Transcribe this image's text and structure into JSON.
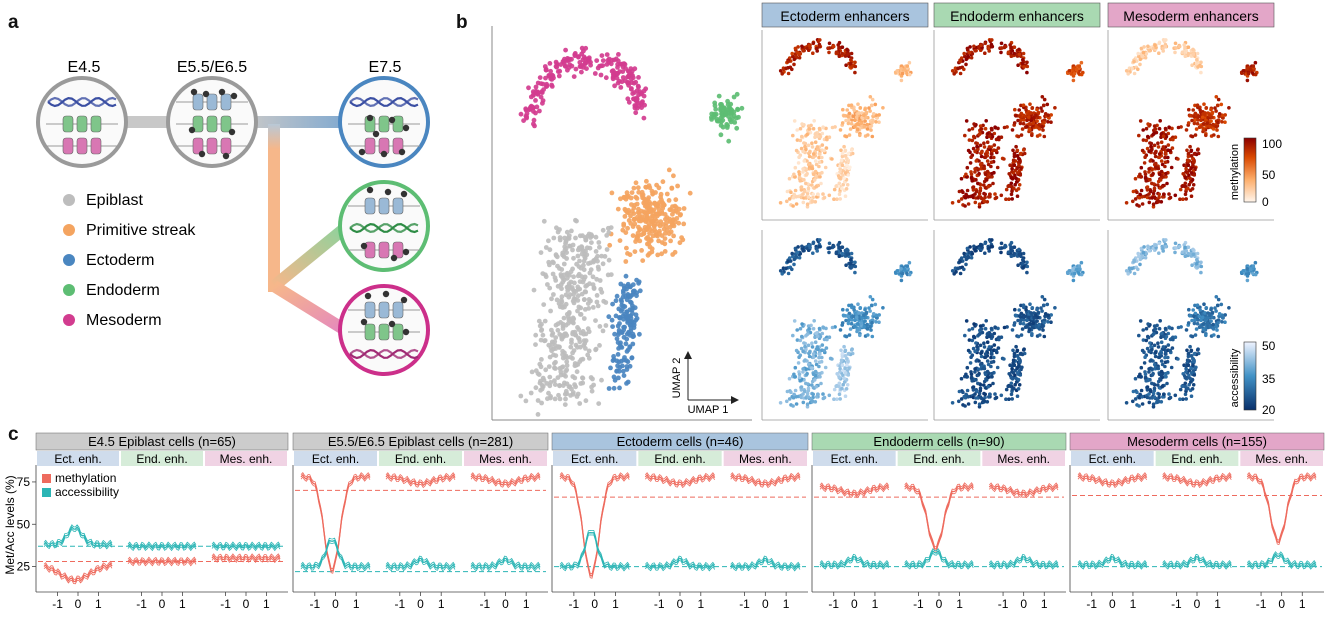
{
  "panel_a": {
    "letter": "a",
    "stages": [
      "E4.5",
      "E5.5/E6.5",
      "E7.5"
    ],
    "legend": [
      {
        "label": "Epiblast",
        "color": "#bdbdbd"
      },
      {
        "label": "Primitive streak",
        "color": "#f4a460"
      },
      {
        "label": "Ectoderm",
        "color": "#4a86c0"
      },
      {
        "label": "Endoderm",
        "color": "#5dbd73"
      },
      {
        "label": "Mesoderm",
        "color": "#d23c8f"
      }
    ]
  },
  "panel_b": {
    "letter": "b",
    "axis_x": "UMAP 1",
    "axis_y": "UMAP 2",
    "column_headers": [
      {
        "label": "Ectoderm enhancers",
        "color": "#a9c4de"
      },
      {
        "label": "Endoderm enhancers",
        "color": "#a9d9b2"
      },
      {
        "label": "Mesoderm enhancers",
        "color": "#e3a6c8"
      }
    ],
    "methylation_bar": {
      "label": "methylation",
      "ticks": [
        "100",
        "50",
        "0"
      ]
    },
    "accessibility_bar": {
      "label": "accessibility",
      "ticks": [
        "50",
        "35",
        "20"
      ]
    }
  },
  "panel_c": {
    "letter": "c",
    "ylabel": "Met/Acc levels (%)",
    "yticks": [
      "75",
      "50",
      "25"
    ],
    "xticks": [
      "-1",
      "0",
      "1"
    ],
    "legend": [
      {
        "label": "methylation",
        "color": "#ee6b5e"
      },
      {
        "label": "accessibility",
        "color": "#2bb5b5"
      }
    ],
    "sub_headers": [
      {
        "label": "Ect. enh.",
        "color": "#cfdcec"
      },
      {
        "label": "End. enh.",
        "color": "#d6ecd9"
      },
      {
        "label": "Mes. enh.",
        "color": "#f0d3e4"
      }
    ],
    "panels": [
      {
        "title": "E4.5 Epiblast cells (n=65)",
        "color": "#cccccc",
        "met_dash": 28,
        "acc_dash": 37,
        "met": [
          [
            -1,
            22
          ],
          [
            -0.5,
            18
          ],
          [
            0,
            24
          ],
          [
            0.5,
            28
          ],
          [
            1,
            29
          ]
        ],
        "acc": [
          [
            -1,
            37
          ],
          [
            -0.5,
            38
          ],
          [
            0,
            47
          ],
          [
            0.5,
            38
          ],
          [
            1,
            37
          ]
        ],
        "met2": 28,
        "acc2": 37,
        "met3": 30,
        "acc3": 36
      },
      {
        "title": "E5.5/E6.5 Epiblast cells (n=281)",
        "color": "#cccccc",
        "met_dash": 70,
        "acc_dash": 22,
        "met_dip": 23,
        "acc_peak": 41,
        "met_flat": 78,
        "acc_flat": 25
      },
      {
        "title": "Ectoderm cells (n=46)",
        "color": "#a9c4de",
        "met_dash": 66,
        "acc_dash": 25,
        "met_dip": 20,
        "acc_peak": 46,
        "met_flat": 78,
        "acc_flat": 25
      },
      {
        "title": "Endoderm cells (n=90)",
        "color": "#a9d9b2",
        "met_dash": 66,
        "acc_dash": 25,
        "met_dip": 36,
        "acc_peak": 34,
        "met_flat": 72,
        "acc_flat": 26
      },
      {
        "title": "Mesoderm cells (n=155)",
        "color": "#e3a6c8",
        "met_dash": 67,
        "acc_dash": 25,
        "met_dip": 40,
        "acc_peak": 32,
        "met_flat": 78,
        "acc_flat": 26
      }
    ]
  }
}
